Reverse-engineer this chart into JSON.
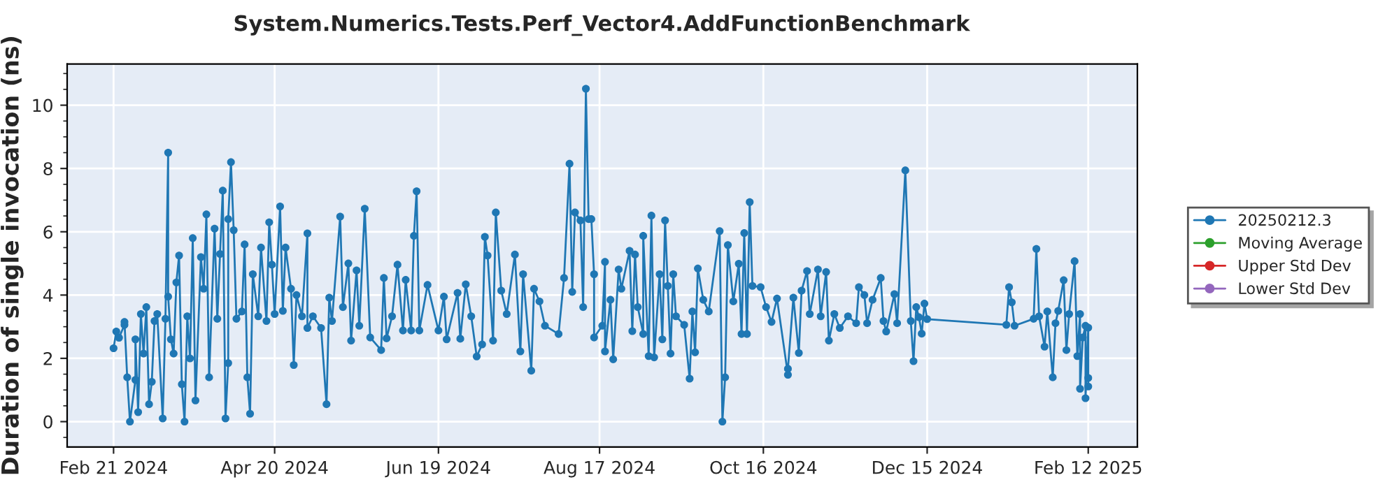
{
  "chart_data": {
    "type": "line",
    "title": "System.Numerics.Tests.Perf_Vector4.AddFunctionBenchmark",
    "ylabel": "Duration of single invocation (ns)",
    "xlim": [
      "2024-02-04",
      "2025-03-02"
    ],
    "xticks": [
      {
        "value": "2024-02-21",
        "label": "Feb 21 2024"
      },
      {
        "value": "2024-04-20",
        "label": "Apr 20 2024"
      },
      {
        "value": "2024-06-19",
        "label": "Jun 19 2024"
      },
      {
        "value": "2024-08-17",
        "label": "Aug 17 2024"
      },
      {
        "value": "2024-10-16",
        "label": "Oct 16 2024"
      },
      {
        "value": "2024-12-15",
        "label": "Dec 15 2024"
      },
      {
        "value": "2025-02-12",
        "label": "Feb 12 2025"
      }
    ],
    "ylim": [
      -0.8,
      11.3
    ],
    "yticks": [
      0,
      2,
      4,
      6,
      8,
      10
    ],
    "grid": true,
    "legend": "right",
    "marker": "circle",
    "line_style": "solid",
    "series": [
      {
        "name": "20250212.3",
        "color": "#1f77b4",
        "x": [
          "2024-02-21",
          "2024-02-22",
          "2024-02-23",
          "2024-02-25",
          "2024-02-25",
          "2024-02-26",
          "2024-02-27",
          "2024-02-29",
          "2024-02-29",
          "2024-03-01",
          "2024-03-02",
          "2024-03-03",
          "2024-03-04",
          "2024-03-05",
          "2024-03-06",
          "2024-03-07",
          "2024-03-08",
          "2024-03-10",
          "2024-03-11",
          "2024-03-12",
          "2024-03-12",
          "2024-03-13",
          "2024-03-14",
          "2024-03-15",
          "2024-03-16",
          "2024-03-17",
          "2024-03-18",
          "2024-03-19",
          "2024-03-20",
          "2024-03-21",
          "2024-03-22",
          "2024-03-24",
          "2024-03-25",
          "2024-03-26",
          "2024-03-27",
          "2024-03-29",
          "2024-03-30",
          "2024-03-31",
          "2024-04-01",
          "2024-04-02",
          "2024-04-03",
          "2024-04-03",
          "2024-04-04",
          "2024-04-05",
          "2024-04-06",
          "2024-04-08",
          "2024-04-09",
          "2024-04-10",
          "2024-04-11",
          "2024-04-12",
          "2024-04-14",
          "2024-04-15",
          "2024-04-17",
          "2024-04-18",
          "2024-04-19",
          "2024-04-20",
          "2024-04-22",
          "2024-04-23",
          "2024-04-24",
          "2024-04-26",
          "2024-04-27",
          "2024-04-28",
          "2024-04-30",
          "2024-05-02",
          "2024-05-02",
          "2024-05-04",
          "2024-05-07",
          "2024-05-09",
          "2024-05-10",
          "2024-05-11",
          "2024-05-14",
          "2024-05-15",
          "2024-05-17",
          "2024-05-18",
          "2024-05-20",
          "2024-05-21",
          "2024-05-23",
          "2024-05-25",
          "2024-05-29",
          "2024-05-30",
          "2024-05-31",
          "2024-06-02",
          "2024-06-04",
          "2024-06-06",
          "2024-06-07",
          "2024-06-09",
          "2024-06-10",
          "2024-06-11",
          "2024-06-12",
          "2024-06-15",
          "2024-06-19",
          "2024-06-21",
          "2024-06-22",
          "2024-06-26",
          "2024-06-27",
          "2024-06-29",
          "2024-07-01",
          "2024-07-03",
          "2024-07-05",
          "2024-07-06",
          "2024-07-07",
          "2024-07-09",
          "2024-07-10",
          "2024-07-12",
          "2024-07-14",
          "2024-07-17",
          "2024-07-19",
          "2024-07-20",
          "2024-07-23",
          "2024-07-24",
          "2024-07-26",
          "2024-07-28",
          "2024-08-02",
          "2024-08-04",
          "2024-08-06",
          "2024-08-07",
          "2024-08-08",
          "2024-08-10",
          "2024-08-11",
          "2024-08-12",
          "2024-08-13",
          "2024-08-14",
          "2024-08-15",
          "2024-08-15",
          "2024-08-18",
          "2024-08-19",
          "2024-08-19",
          "2024-08-21",
          "2024-08-22",
          "2024-08-24",
          "2024-08-25",
          "2024-08-28",
          "2024-08-29",
          "2024-08-30",
          "2024-08-31",
          "2024-09-02",
          "2024-09-02",
          "2024-09-04",
          "2024-09-05",
          "2024-09-06",
          "2024-09-08",
          "2024-09-09",
          "2024-09-10",
          "2024-09-11",
          "2024-09-12",
          "2024-09-13",
          "2024-09-14",
          "2024-09-17",
          "2024-09-19",
          "2024-09-20",
          "2024-09-21",
          "2024-09-22",
          "2024-09-24",
          "2024-09-26",
          "2024-09-30",
          "2024-10-01",
          "2024-10-02",
          "2024-10-03",
          "2024-10-05",
          "2024-10-07",
          "2024-10-08",
          "2024-10-09",
          "2024-10-10",
          "2024-10-11",
          "2024-10-12",
          "2024-10-15",
          "2024-10-17",
          "2024-10-19",
          "2024-10-21",
          "2024-10-25",
          "2024-10-25",
          "2024-10-27",
          "2024-10-29",
          "2024-10-30",
          "2024-11-01",
          "2024-11-02",
          "2024-11-05",
          "2024-11-06",
          "2024-11-08",
          "2024-11-09",
          "2024-11-11",
          "2024-11-13",
          "2024-11-16",
          "2024-11-19",
          "2024-11-20",
          "2024-11-22",
          "2024-11-23",
          "2024-11-25",
          "2024-11-28",
          "2024-11-29",
          "2024-11-30",
          "2024-12-03",
          "2024-12-04",
          "2024-12-07",
          "2024-12-09",
          "2024-12-10",
          "2024-12-11",
          "2024-12-12",
          "2024-12-13",
          "2024-12-14",
          "2024-12-15",
          "2025-01-13",
          "2025-01-14",
          "2025-01-15",
          "2025-01-16",
          "2025-01-23",
          "2025-01-24",
          "2025-01-25",
          "2025-01-27",
          "2025-01-28",
          "2025-01-30",
          "2025-01-31",
          "2025-02-01",
          "2025-02-03",
          "2025-02-04",
          "2025-02-05",
          "2025-02-07",
          "2025-02-08",
          "2025-02-09",
          "2025-02-09",
          "2025-02-10",
          "2025-02-11",
          "2025-02-11",
          "2025-02-12",
          "2025-02-12",
          "2025-02-12"
        ],
        "values": [
          2.32,
          2.85,
          2.65,
          3.06,
          3.15,
          1.4,
          0.0,
          1.32,
          2.6,
          0.3,
          3.4,
          2.15,
          3.62,
          0.55,
          1.26,
          3.18,
          3.4,
          0.1,
          3.25,
          8.5,
          3.95,
          2.6,
          2.15,
          4.4,
          5.25,
          1.18,
          0.0,
          3.33,
          2.0,
          5.8,
          0.67,
          5.2,
          4.2,
          6.55,
          1.4,
          6.1,
          3.25,
          5.3,
          7.3,
          0.1,
          1.85,
          6.4,
          8.2,
          6.05,
          3.25,
          3.48,
          5.6,
          1.4,
          0.25,
          4.66,
          3.33,
          5.5,
          3.18,
          6.3,
          4.96,
          3.4,
          6.8,
          3.5,
          5.5,
          4.2,
          1.79,
          4.0,
          3.33,
          5.95,
          2.96,
          3.33,
          2.96,
          0.55,
          3.92,
          3.18,
          6.48,
          3.62,
          5.0,
          2.56,
          4.78,
          3.03,
          6.73,
          2.66,
          2.26,
          4.54,
          2.63,
          3.33,
          4.96,
          2.88,
          4.48,
          2.88,
          5.87,
          7.28,
          2.88,
          4.32,
          2.88,
          3.95,
          2.6,
          4.07,
          2.62,
          4.34,
          3.33,
          2.06,
          2.44,
          5.84,
          5.25,
          2.56,
          6.61,
          4.14,
          3.4,
          5.28,
          2.22,
          4.66,
          1.61,
          4.2,
          3.8,
          3.03,
          2.77,
          4.54,
          8.15,
          4.1,
          6.61,
          6.36,
          3.62,
          10.52,
          6.4,
          6.4,
          4.66,
          2.66,
          3.03,
          5.05,
          2.22,
          3.85,
          1.97,
          4.81,
          4.2,
          5.4,
          2.86,
          5.28,
          3.62,
          2.77,
          5.87,
          2.07,
          6.51,
          2.03,
          4.66,
          2.6,
          6.36,
          4.29,
          2.15,
          4.66,
          3.33,
          3.06,
          1.36,
          3.48,
          2.19,
          4.84,
          3.85,
          3.48,
          6.02,
          0.0,
          1.4,
          5.58,
          3.8,
          4.99,
          2.77,
          5.96,
          2.77,
          6.94,
          4.29,
          4.25,
          3.62,
          3.15,
          3.89,
          1.48,
          1.67,
          3.92,
          2.17,
          4.14,
          4.76,
          3.4,
          4.81,
          3.33,
          4.73,
          2.56,
          3.4,
          2.96,
          3.33,
          3.11,
          4.25,
          4.0,
          3.11,
          3.85,
          4.54,
          3.18,
          2.85,
          4.03,
          3.11,
          7.94,
          3.18,
          1.91,
          3.62,
          3.3,
          2.78,
          3.73,
          3.24,
          3.06,
          4.25,
          3.77,
          3.03,
          3.25,
          5.46,
          3.33,
          2.37,
          3.48,
          1.4,
          3.11,
          3.5,
          4.47,
          2.26,
          3.4,
          5.07,
          2.07,
          3.4,
          1.04,
          2.66,
          3.03,
          0.74,
          2.97,
          1.38,
          1.11
        ]
      },
      {
        "name": "Moving Average",
        "color": "#2ca02c"
      },
      {
        "name": "Upper Std Dev",
        "color": "#d62728"
      },
      {
        "name": "Lower Std Dev",
        "color": "#9467bd"
      }
    ]
  }
}
